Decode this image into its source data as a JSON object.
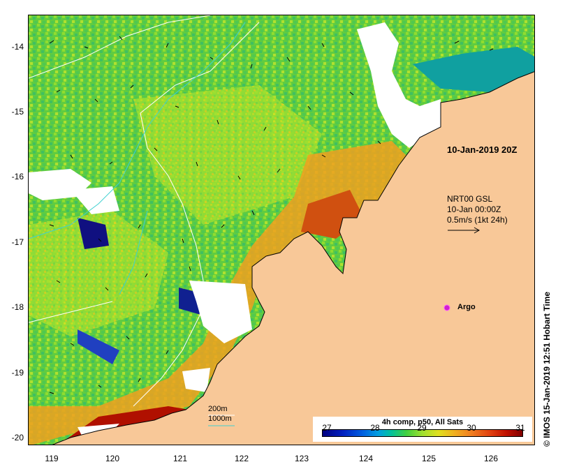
{
  "map": {
    "y_ticks": [
      "-14",
      "-15",
      "-16",
      "-17",
      "-18",
      "-19",
      "-20"
    ],
    "x_ticks": [
      "119",
      "120",
      "121",
      "122",
      "123",
      "124",
      "125",
      "126"
    ],
    "timestamp_label": "10-Jan-2019 20Z",
    "current_legend": {
      "line1": "NRT00 GSL",
      "line2": "10-Jan 00:00Z",
      "line3": "0.5m/s (1kt 24h)"
    },
    "argo_label": "Argo",
    "argo_marker_color": "#d020d0",
    "land_color": "#f8c898",
    "isobath_color_200m": "#ffffff",
    "isobath_color_1000m": "#40d0d0",
    "isobath_labels": [
      "200m",
      "1000m"
    ]
  },
  "colorbar": {
    "title": "4h comp, p50, All Sats",
    "ticks": [
      "27",
      "28",
      "29",
      "30",
      "31"
    ]
  },
  "credit": "© IMOS 15-Jan-2019 12:51 Hobart Time"
}
